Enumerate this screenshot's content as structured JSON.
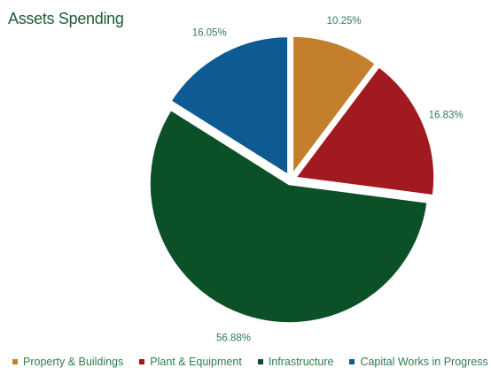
{
  "chart_data": {
    "type": "pie",
    "title": "Assets Spending",
    "slices": [
      {
        "name": "Property & Buildings",
        "value": 10.25,
        "label": "10.25%",
        "color": "#c37f2c"
      },
      {
        "name": "Plant & Equipment",
        "value": 16.83,
        "label": "16.83%",
        "color": "#a11a1f"
      },
      {
        "name": "Infrastructure",
        "value": 56.88,
        "label": "56.88%",
        "color": "#0c5027"
      },
      {
        "name": "Capital Works in Progress",
        "value": 16.05,
        "label": "16.05%",
        "color": "#0e5b93"
      }
    ],
    "legend_position": "bottom"
  }
}
